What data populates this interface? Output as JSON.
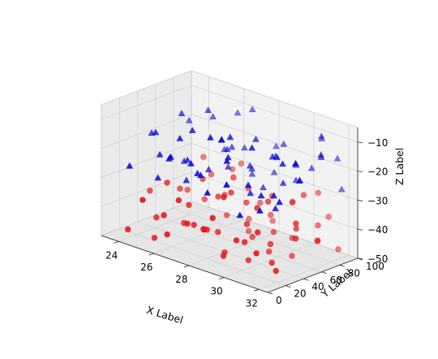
{
  "chart_data": {
    "type": "scatter",
    "projection": "3d",
    "title": "",
    "xlabel": "X Label",
    "ylabel": "Y Label",
    "zlabel": "Z Label",
    "xlim": [
      23,
      32.5
    ],
    "ylim": [
      0,
      100
    ],
    "zlim": [
      -50,
      -5
    ],
    "xticks": [
      24,
      26,
      28,
      30,
      32
    ],
    "yticks": [
      0,
      20,
      40,
      60,
      80,
      100
    ],
    "zticks": [
      -10,
      -20,
      -30,
      -40,
      -50
    ],
    "grid": true,
    "series": [
      {
        "marker": "circle",
        "color": "#e41a1c",
        "points": [
          [
            23.2,
            50,
            -40
          ],
          [
            23.8,
            80,
            -42
          ],
          [
            24.0,
            10,
            -47
          ],
          [
            24.4,
            60,
            -38
          ],
          [
            24.6,
            30,
            -44
          ],
          [
            24.9,
            85,
            -35
          ],
          [
            25.0,
            20,
            -49
          ],
          [
            25.3,
            70,
            -41
          ],
          [
            25.4,
            45,
            -46
          ],
          [
            25.6,
            95,
            -33
          ],
          [
            25.8,
            15,
            -39
          ],
          [
            26.0,
            55,
            -48
          ],
          [
            26.2,
            35,
            -37
          ],
          [
            26.3,
            75,
            -45
          ],
          [
            26.5,
            5,
            -43
          ],
          [
            26.7,
            65,
            -36
          ],
          [
            26.8,
            90,
            -47
          ],
          [
            27.0,
            25,
            -41
          ],
          [
            27.1,
            50,
            -34
          ],
          [
            27.3,
            80,
            -49
          ],
          [
            27.4,
            10,
            -38
          ],
          [
            27.6,
            40,
            -44
          ],
          [
            27.8,
            70,
            -32
          ],
          [
            27.9,
            95,
            -46
          ],
          [
            28.0,
            20,
            -40
          ],
          [
            28.2,
            60,
            -35
          ],
          [
            28.3,
            85,
            -42
          ],
          [
            28.5,
            30,
            -48
          ],
          [
            28.6,
            5,
            -37
          ],
          [
            28.8,
            55,
            -45
          ],
          [
            28.9,
            75,
            -33
          ],
          [
            29.0,
            45,
            -39
          ],
          [
            29.2,
            15,
            -46
          ],
          [
            29.3,
            90,
            -36
          ],
          [
            29.5,
            65,
            -43
          ],
          [
            29.6,
            35,
            -49
          ],
          [
            29.8,
            80,
            -34
          ],
          [
            29.9,
            25,
            -41
          ],
          [
            30.0,
            50,
            -47
          ],
          [
            30.2,
            10,
            -38
          ],
          [
            30.3,
            70,
            -44
          ],
          [
            30.5,
            95,
            -31
          ],
          [
            30.6,
            40,
            -42
          ],
          [
            30.8,
            60,
            -48
          ],
          [
            30.9,
            20,
            -35
          ],
          [
            31.0,
            85,
            -40
          ],
          [
            31.2,
            30,
            -46
          ],
          [
            31.3,
            55,
            -37
          ],
          [
            31.5,
            75,
            -43
          ],
          [
            31.6,
            5,
            -39
          ],
          [
            31.8,
            45,
            -33
          ],
          [
            31.9,
            90,
            -47
          ],
          [
            32.0,
            65,
            -41
          ],
          [
            32.2,
            15,
            -45
          ],
          [
            32.3,
            35,
            -36
          ],
          [
            24.2,
            90,
            -31
          ],
          [
            25.1,
            5,
            -34
          ],
          [
            26.1,
            95,
            -30
          ],
          [
            27.2,
            65,
            -29
          ],
          [
            28.1,
            45,
            -30
          ],
          [
            29.1,
            5,
            -32
          ],
          [
            30.1,
            35,
            -30
          ],
          [
            31.1,
            95,
            -38
          ],
          [
            25.7,
            60,
            -32
          ],
          [
            24.7,
            40,
            -33
          ],
          [
            28.7,
            25,
            -28
          ],
          [
            29.7,
            55,
            -31
          ],
          [
            30.7,
            75,
            -29
          ],
          [
            26.9,
            10,
            -31
          ],
          [
            27.7,
            85,
            -39
          ]
        ]
      },
      {
        "marker": "triangle",
        "color": "#0a0ad2",
        "points": [
          [
            23.3,
            50,
            -20
          ],
          [
            23.9,
            80,
            -18
          ],
          [
            24.1,
            10,
            -25
          ],
          [
            24.5,
            60,
            -12
          ],
          [
            24.8,
            30,
            -22
          ],
          [
            25.0,
            85,
            -15
          ],
          [
            25.2,
            20,
            -28
          ],
          [
            25.5,
            70,
            -10
          ],
          [
            25.6,
            45,
            -24
          ],
          [
            25.9,
            95,
            -13
          ],
          [
            26.1,
            15,
            -19
          ],
          [
            26.3,
            55,
            -27
          ],
          [
            26.4,
            35,
            -11
          ],
          [
            26.6,
            75,
            -21
          ],
          [
            26.7,
            5,
            -16
          ],
          [
            26.9,
            65,
            -26
          ],
          [
            27.0,
            90,
            -9
          ],
          [
            27.2,
            25,
            -23
          ],
          [
            27.3,
            50,
            -14
          ],
          [
            27.5,
            80,
            -29
          ],
          [
            27.6,
            10,
            -17
          ],
          [
            27.8,
            40,
            -12
          ],
          [
            28.0,
            70,
            -25
          ],
          [
            28.1,
            95,
            -20
          ],
          [
            28.2,
            20,
            -8
          ],
          [
            28.4,
            60,
            -22
          ],
          [
            28.5,
            85,
            -27
          ],
          [
            28.7,
            30,
            -15
          ],
          [
            28.8,
            5,
            -24
          ],
          [
            29.0,
            55,
            -11
          ],
          [
            29.1,
            75,
            -19
          ],
          [
            29.2,
            45,
            -28
          ],
          [
            29.4,
            15,
            -13
          ],
          [
            29.5,
            90,
            -23
          ],
          [
            29.7,
            65,
            -17
          ],
          [
            29.8,
            35,
            -10
          ],
          [
            30.0,
            80,
            -26
          ],
          [
            30.1,
            25,
            -21
          ],
          [
            30.2,
            50,
            -14
          ],
          [
            30.4,
            10,
            -29
          ],
          [
            30.5,
            70,
            -18
          ],
          [
            30.7,
            95,
            -12
          ],
          [
            30.8,
            40,
            -25
          ],
          [
            31.0,
            60,
            -16
          ],
          [
            31.1,
            20,
            -22
          ],
          [
            31.2,
            85,
            -9
          ],
          [
            31.4,
            30,
            -27
          ],
          [
            31.5,
            55,
            -20
          ],
          [
            31.7,
            75,
            -14
          ],
          [
            31.8,
            5,
            -24
          ],
          [
            32.0,
            45,
            -18
          ],
          [
            32.1,
            90,
            -26
          ],
          [
            32.2,
            65,
            -11
          ],
          [
            32.4,
            15,
            -21
          ],
          [
            24.3,
            35,
            -16
          ],
          [
            25.4,
            90,
            -26
          ],
          [
            26.2,
            25,
            -13
          ],
          [
            27.1,
            60,
            -19
          ],
          [
            28.3,
            40,
            -10
          ],
          [
            29.3,
            80,
            -15
          ],
          [
            30.3,
            60,
            -24
          ],
          [
            31.3,
            40,
            -13
          ],
          [
            24.9,
            55,
            -27
          ],
          [
            26.8,
            85,
            -22
          ],
          [
            27.9,
            15,
            -21
          ],
          [
            29.9,
            5,
            -19
          ],
          [
            30.9,
            80,
            -20
          ],
          [
            31.6,
            95,
            -17
          ],
          [
            25.8,
            40,
            -30
          ],
          [
            28.9,
            65,
            -29
          ]
        ]
      }
    ]
  }
}
